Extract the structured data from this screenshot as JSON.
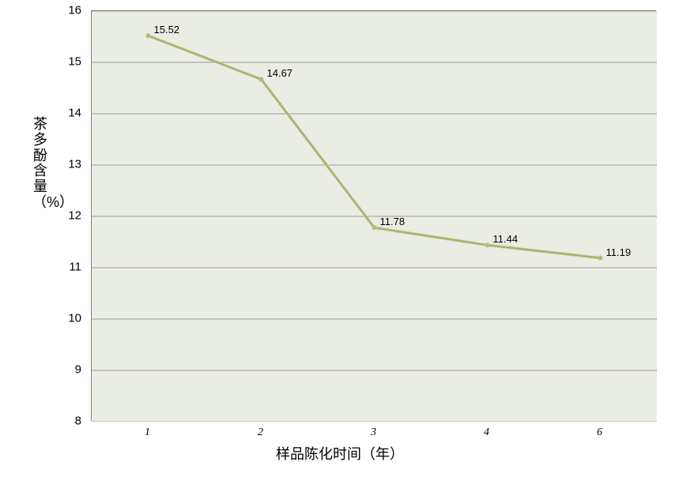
{
  "chart": {
    "type": "line",
    "background_color": "#eaede4",
    "border_color": "#7f7f7f",
    "grid_color": "#808080",
    "grid_width": 0.7,
    "line_color_outer": "#c7c49b",
    "line_color_inner": "#a9b26a",
    "line_width_outer": 3.5,
    "line_width_inner": 2,
    "marker_color": "#b5bb80",
    "marker_size": 3,
    "x_label": "样品陈化时间（年）",
    "y_label": "茶多酚含量（%）",
    "x_categories": [
      "1",
      "2",
      "3",
      "4",
      "6"
    ],
    "y_min": 8,
    "y_max": 16,
    "y_tick_step": 1,
    "y_ticks": [
      8,
      9,
      10,
      11,
      12,
      13,
      14,
      15,
      16
    ],
    "values": [
      15.52,
      14.67,
      11.78,
      11.44,
      11.19
    ],
    "data_label_text": [
      "15.52",
      "14.67",
      "11.78",
      "11.44",
      "11.19"
    ],
    "label_fontsize": 15,
    "title_fontsize": 18,
    "datalabel_fontsize": 13
  }
}
